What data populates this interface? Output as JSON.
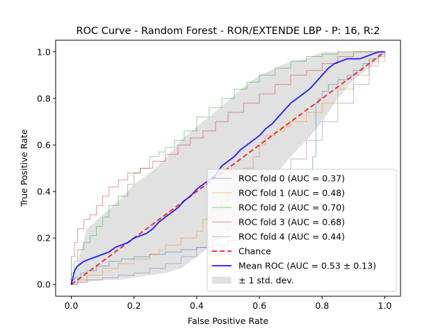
{
  "chart_data": {
    "type": "line",
    "title": "ROC Curve - Random Forest - ROR/EXTENDE LBP - P: 16, R:2",
    "xlabel": "False Positive Rate",
    "ylabel": "True Positive Rate",
    "xlim": [
      -0.05,
      1.05
    ],
    "ylim": [
      -0.05,
      1.05
    ],
    "xticks": [
      0.0,
      0.2,
      0.4,
      0.6,
      0.8,
      1.0
    ],
    "yticks": [
      0.0,
      0.2,
      0.4,
      0.6,
      0.8,
      1.0
    ],
    "xtick_labels": [
      "0.0",
      "0.2",
      "0.4",
      "0.6",
      "0.8",
      "1.0"
    ],
    "ytick_labels": [
      "0.0",
      "0.2",
      "0.4",
      "0.6",
      "0.8",
      "1.0"
    ],
    "grid": false,
    "legend_position": "lower right",
    "series": [
      {
        "name": "ROC fold 0 (AUC = 0.37)",
        "color": "#1f77b4",
        "style": "step",
        "x": [
          0.0,
          0.0,
          0.01,
          0.03,
          0.05,
          0.08,
          0.12,
          0.16,
          0.2,
          0.25,
          0.3,
          0.35,
          0.4,
          0.45,
          0.5,
          0.55,
          0.6,
          0.65,
          0.7,
          0.73,
          0.75,
          0.77,
          0.78,
          0.78,
          0.79,
          0.8,
          0.82,
          0.85,
          0.88,
          0.9,
          0.93,
          0.95,
          0.98,
          1.0
        ],
        "y": [
          0.0,
          0.02,
          0.03,
          0.05,
          0.06,
          0.08,
          0.1,
          0.11,
          0.12,
          0.13,
          0.14,
          0.15,
          0.16,
          0.17,
          0.19,
          0.21,
          0.24,
          0.28,
          0.35,
          0.42,
          0.49,
          0.55,
          0.72,
          0.78,
          0.8,
          0.83,
          0.86,
          0.88,
          0.9,
          0.92,
          0.95,
          0.97,
          0.99,
          1.0
        ]
      },
      {
        "name": "ROC fold 1 (AUC = 0.48)",
        "color": "#ff7f0e",
        "style": "step",
        "x": [
          0.0,
          0.02,
          0.05,
          0.1,
          0.15,
          0.2,
          0.25,
          0.28,
          0.3,
          0.35,
          0.4,
          0.42,
          0.45,
          0.48,
          0.5,
          0.52,
          0.55,
          0.58,
          0.6,
          0.62,
          0.65,
          0.68,
          0.7,
          0.75,
          0.8,
          0.85,
          0.9,
          0.95,
          1.0
        ],
        "y": [
          0.0,
          0.02,
          0.04,
          0.07,
          0.09,
          0.11,
          0.13,
          0.15,
          0.17,
          0.2,
          0.23,
          0.28,
          0.32,
          0.36,
          0.4,
          0.45,
          0.5,
          0.55,
          0.6,
          0.64,
          0.66,
          0.68,
          0.7,
          0.74,
          0.78,
          0.84,
          0.9,
          0.96,
          1.0
        ]
      },
      {
        "name": "ROC fold 2 (AUC = 0.70)",
        "color": "#2ca02c",
        "style": "step",
        "x": [
          0.0,
          0.0,
          0.01,
          0.02,
          0.04,
          0.06,
          0.08,
          0.1,
          0.12,
          0.15,
          0.18,
          0.2,
          0.22,
          0.25,
          0.28,
          0.3,
          0.33,
          0.36,
          0.4,
          0.44,
          0.48,
          0.52,
          0.56,
          0.6,
          0.65,
          0.7,
          0.75,
          0.8,
          0.85,
          0.9,
          0.95,
          1.0
        ],
        "y": [
          0.0,
          0.05,
          0.1,
          0.15,
          0.18,
          0.21,
          0.25,
          0.29,
          0.34,
          0.38,
          0.43,
          0.48,
          0.5,
          0.55,
          0.57,
          0.59,
          0.62,
          0.66,
          0.72,
          0.76,
          0.8,
          0.84,
          0.87,
          0.9,
          0.93,
          0.96,
          0.98,
          0.99,
          1.0,
          1.0,
          1.0,
          1.0
        ]
      },
      {
        "name": "ROC fold 3 (AUC = 0.68)",
        "color": "#d62728",
        "style": "step",
        "x": [
          0.0,
          0.0,
          0.01,
          0.02,
          0.04,
          0.06,
          0.08,
          0.1,
          0.12,
          0.15,
          0.18,
          0.22,
          0.26,
          0.3,
          0.34,
          0.38,
          0.42,
          0.46,
          0.5,
          0.55,
          0.6,
          0.65,
          0.7,
          0.75,
          0.8,
          0.85,
          0.9,
          0.95,
          1.0
        ],
        "y": [
          0.0,
          0.12,
          0.18,
          0.24,
          0.28,
          0.3,
          0.34,
          0.38,
          0.42,
          0.45,
          0.48,
          0.5,
          0.53,
          0.56,
          0.6,
          0.63,
          0.66,
          0.7,
          0.74,
          0.78,
          0.82,
          0.86,
          0.9,
          0.92,
          0.95,
          0.98,
          1.0,
          1.0,
          1.0
        ]
      },
      {
        "name": "ROC fold 4 (AUC = 0.44)",
        "color": "#9467bd",
        "style": "step",
        "x": [
          0.0,
          0.02,
          0.05,
          0.1,
          0.15,
          0.2,
          0.25,
          0.3,
          0.35,
          0.4,
          0.45,
          0.5,
          0.55,
          0.6,
          0.65,
          0.7,
          0.75,
          0.8,
          0.85,
          0.9,
          0.95,
          0.98,
          1.0
        ],
        "y": [
          0.0,
          0.01,
          0.02,
          0.03,
          0.04,
          0.05,
          0.07,
          0.09,
          0.12,
          0.16,
          0.2,
          0.24,
          0.3,
          0.38,
          0.46,
          0.54,
          0.62,
          0.7,
          0.78,
          0.86,
          0.94,
          0.98,
          1.0
        ]
      },
      {
        "name": "Chance",
        "color": "#ff0000",
        "style": "dashed",
        "x": [
          0.0,
          1.0
        ],
        "y": [
          0.0,
          1.0
        ]
      },
      {
        "name": "Mean ROC (AUC = 0.53 ± 0.13)",
        "color": "#0000ff",
        "style": "solid",
        "x": [
          0.0,
          0.01,
          0.02,
          0.04,
          0.06,
          0.08,
          0.1,
          0.12,
          0.14,
          0.16,
          0.18,
          0.2,
          0.22,
          0.24,
          0.26,
          0.28,
          0.3,
          0.32,
          0.34,
          0.36,
          0.38,
          0.4,
          0.42,
          0.44,
          0.46,
          0.48,
          0.5,
          0.52,
          0.54,
          0.56,
          0.58,
          0.6,
          0.62,
          0.64,
          0.66,
          0.68,
          0.7,
          0.72,
          0.74,
          0.76,
          0.78,
          0.8,
          0.82,
          0.84,
          0.86,
          0.88,
          0.9,
          0.92,
          0.94,
          0.96,
          0.98,
          1.0
        ],
        "y": [
          0.0,
          0.06,
          0.08,
          0.1,
          0.11,
          0.12,
          0.13,
          0.14,
          0.16,
          0.17,
          0.18,
          0.2,
          0.21,
          0.22,
          0.24,
          0.27,
          0.29,
          0.31,
          0.33,
          0.36,
          0.38,
          0.41,
          0.43,
          0.45,
          0.47,
          0.51,
          0.53,
          0.55,
          0.58,
          0.6,
          0.62,
          0.64,
          0.67,
          0.69,
          0.72,
          0.75,
          0.78,
          0.8,
          0.82,
          0.84,
          0.87,
          0.9,
          0.93,
          0.95,
          0.96,
          0.97,
          0.97,
          0.97,
          0.98,
          0.99,
          1.0,
          1.0
        ]
      }
    ],
    "band": {
      "name": "± 1 std. dev.",
      "color": "#a9a9a9",
      "x": [
        0.0,
        0.05,
        0.1,
        0.15,
        0.2,
        0.25,
        0.3,
        0.35,
        0.4,
        0.45,
        0.5,
        0.55,
        0.6,
        0.65,
        0.7,
        0.75,
        0.8,
        0.85,
        0.9,
        0.95,
        1.0
      ],
      "upper": [
        0.0,
        0.24,
        0.3,
        0.36,
        0.43,
        0.48,
        0.54,
        0.62,
        0.68,
        0.73,
        0.79,
        0.85,
        0.9,
        0.93,
        0.96,
        0.97,
        1.0,
        1.0,
        1.0,
        1.0,
        1.0
      ],
      "lower": [
        0.0,
        0.01,
        0.02,
        0.02,
        0.03,
        0.04,
        0.05,
        0.07,
        0.12,
        0.17,
        0.23,
        0.3,
        0.37,
        0.47,
        0.55,
        0.62,
        0.7,
        0.8,
        0.88,
        0.93,
        1.0
      ]
    }
  }
}
